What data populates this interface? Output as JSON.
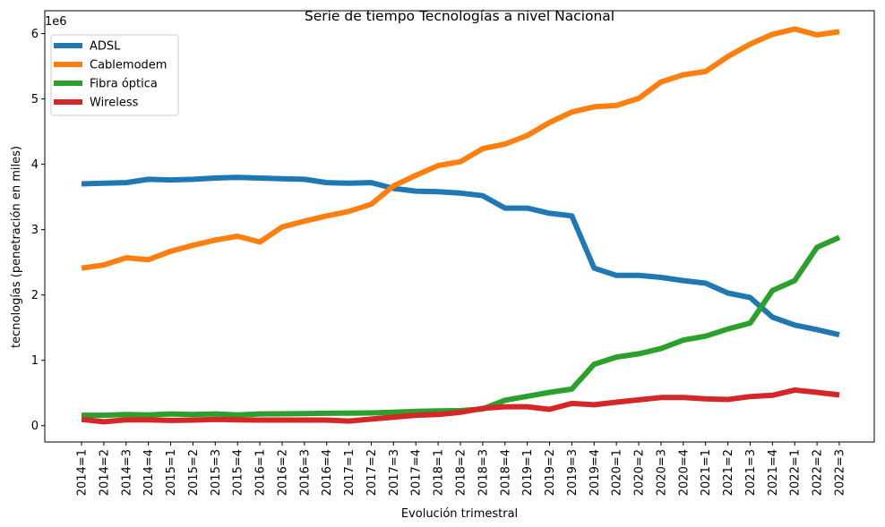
{
  "chart_data": {
    "type": "line",
    "title": "Serie de tiempo Tecnologías a nivel Nacional",
    "xlabel": "Evolución trimestral",
    "ylabel": "tecnologías (penetración en miles)",
    "y_offset_label": "1e6",
    "ylim": [
      -250000,
      6350000
    ],
    "yticks": [
      0,
      1000000,
      2000000,
      3000000,
      4000000,
      5000000,
      6000000
    ],
    "ytick_labels": [
      "0",
      "1",
      "2",
      "3",
      "4",
      "5",
      "6"
    ],
    "grid": false,
    "legend_position": "upper-left",
    "categories": [
      "2014=1",
      "2014=2",
      "2014=3",
      "2014=4",
      "2015=1",
      "2015=2",
      "2015=3",
      "2015=4",
      "2016=1",
      "2016=2",
      "2016=3",
      "2016=4",
      "2017=1",
      "2017=2",
      "2017=3",
      "2017=4",
      "2018=1",
      "2018=2",
      "2018=3",
      "2018=4",
      "2019=1",
      "2019=2",
      "2019=3",
      "2019=4",
      "2020=1",
      "2020=2",
      "2020=3",
      "2020=4",
      "2021=1",
      "2021=2",
      "2021=3",
      "2021=4",
      "2022=1",
      "2022=2",
      "2022=3"
    ],
    "series": [
      {
        "name": "ADSL",
        "color": "#1f77b4",
        "values": [
          3700000,
          3710000,
          3720000,
          3770000,
          3760000,
          3770000,
          3790000,
          3800000,
          3790000,
          3780000,
          3770000,
          3720000,
          3710000,
          3720000,
          3630000,
          3590000,
          3580000,
          3560000,
          3520000,
          3330000,
          3330000,
          3250000,
          3210000,
          2410000,
          2300000,
          2300000,
          2270000,
          2220000,
          2180000,
          2030000,
          1960000,
          1660000,
          1540000,
          1470000,
          1390000
        ]
      },
      {
        "name": "Cablemodem",
        "color": "#ff7f0e",
        "values": [
          2410000,
          2460000,
          2570000,
          2540000,
          2670000,
          2760000,
          2840000,
          2900000,
          2810000,
          3040000,
          3130000,
          3210000,
          3280000,
          3390000,
          3670000,
          3830000,
          3980000,
          4040000,
          4240000,
          4310000,
          4440000,
          4640000,
          4800000,
          4880000,
          4900000,
          5010000,
          5260000,
          5370000,
          5420000,
          5650000,
          5840000,
          5990000,
          6070000,
          5980000,
          6030000
        ]
      },
      {
        "name": "Fibra óptica",
        "color": "#2ca02c",
        "values": [
          160000,
          160000,
          170000,
          165000,
          180000,
          170000,
          180000,
          165000,
          180000,
          182000,
          185000,
          190000,
          192000,
          195000,
          205000,
          220000,
          225000,
          230000,
          255000,
          390000,
          450000,
          510000,
          560000,
          940000,
          1050000,
          1100000,
          1180000,
          1310000,
          1370000,
          1480000,
          1570000,
          2070000,
          2220000,
          2730000,
          2880000
        ]
      },
      {
        "name": "Wireless",
        "color": "#d62728",
        "values": [
          95000,
          60000,
          90000,
          90000,
          80000,
          85000,
          95000,
          90000,
          85000,
          85000,
          85000,
          85000,
          70000,
          100000,
          130000,
          160000,
          170000,
          205000,
          265000,
          290000,
          290000,
          250000,
          340000,
          320000,
          360000,
          395000,
          430000,
          430000,
          410000,
          400000,
          445000,
          465000,
          545000,
          510000,
          470000
        ]
      }
    ]
  }
}
